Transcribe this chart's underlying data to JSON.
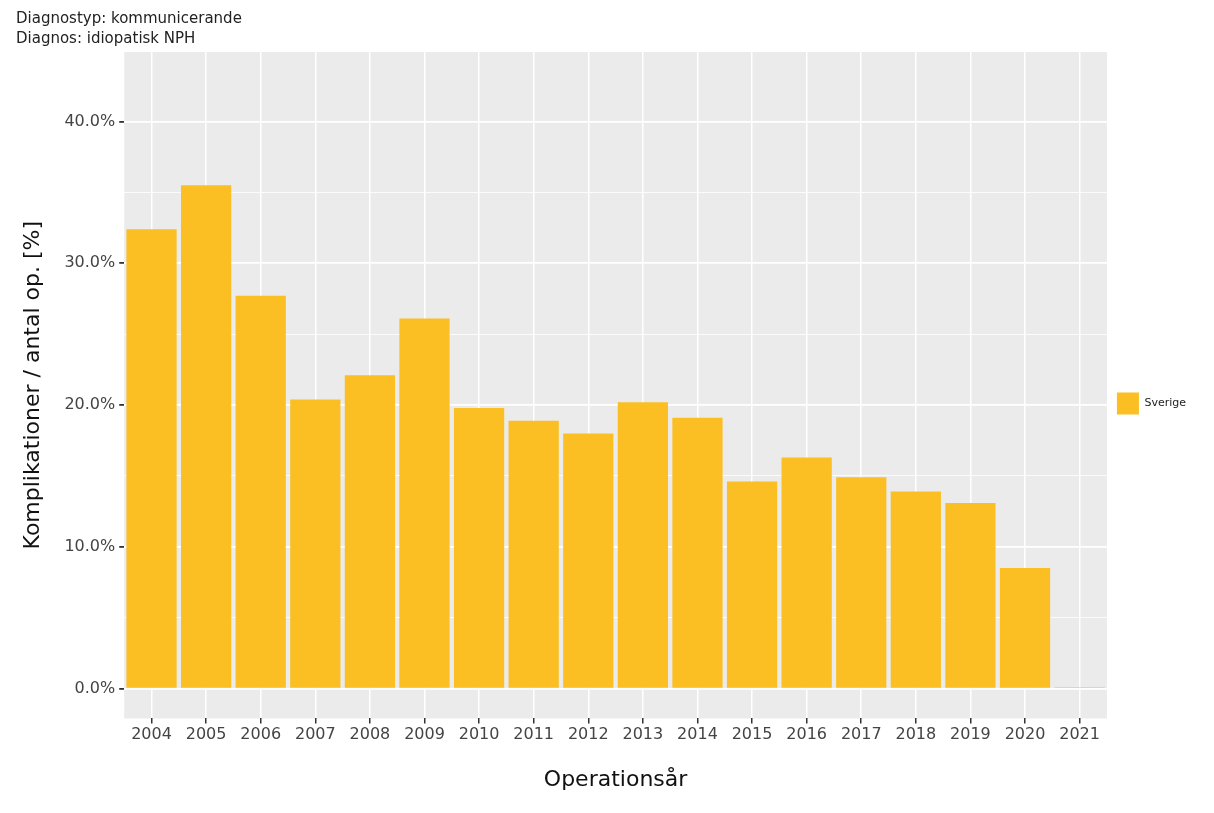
{
  "chart_data": {
    "type": "bar",
    "title": "Diagnostyp: kommunicerande",
    "subtitle": "Diagnos: idiopatisk NPH",
    "xlabel": "Operationsår",
    "ylabel": "Komplikationer / antal op. [%]",
    "categories": [
      "2004",
      "2005",
      "2006",
      "2007",
      "2008",
      "2009",
      "2010",
      "2011",
      "2012",
      "2013",
      "2014",
      "2015",
      "2016",
      "2017",
      "2018",
      "2019",
      "2020",
      "2021"
    ],
    "series": [
      {
        "name": "Sverige",
        "color": "#fbbf24",
        "values": [
          32.4,
          35.5,
          27.7,
          20.4,
          22.1,
          26.1,
          19.8,
          18.9,
          18.0,
          20.2,
          19.1,
          14.6,
          16.3,
          14.9,
          13.9,
          13.1,
          8.5,
          0.1
        ]
      }
    ],
    "ylim": [
      -2.1,
      44.9
    ],
    "yticks": [
      {
        "value": 0,
        "label": "0.0%"
      },
      {
        "value": 5,
        "label": null
      },
      {
        "value": 10,
        "label": "10.0%"
      },
      {
        "value": 15,
        "label": null
      },
      {
        "value": 20,
        "label": "20.0%"
      },
      {
        "value": 25,
        "label": null
      },
      {
        "value": 30,
        "label": "30.0%"
      },
      {
        "value": 35,
        "label": null
      },
      {
        "value": 40,
        "label": "40.0%"
      }
    ],
    "grid": true,
    "legend": "right"
  }
}
